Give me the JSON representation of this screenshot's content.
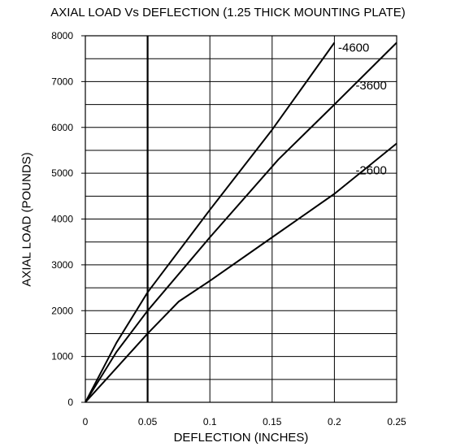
{
  "chart_data": {
    "type": "line",
    "title": "AXIAL LOAD Vs DEFLECTION (1.25 THICK MOUNTING PLATE)",
    "xlabel": "DEFLECTION (INCHES)",
    "ylabel": "AXIAL LOAD (POUNDS)",
    "xlim": [
      0,
      0.25
    ],
    "ylim": [
      0,
      8000
    ],
    "x_ticks": [
      "0",
      "0.05",
      "0.1",
      "0.15",
      "0.2",
      "0.25"
    ],
    "y_ticks": [
      "0",
      "1000",
      "2000",
      "3000",
      "4000",
      "5000",
      "6000",
      "7000",
      "8000"
    ],
    "grid": true,
    "series": [
      {
        "name": "-4600",
        "x": [
          0,
          0.025,
          0.05,
          0.1,
          0.15,
          0.2
        ],
        "y": [
          0,
          1300,
          2400,
          4200,
          5950,
          7850
        ],
        "label_at": [
          0.203,
          7650
        ]
      },
      {
        "name": "-3600",
        "x": [
          0,
          0.025,
          0.05,
          0.1,
          0.155,
          0.2,
          0.25
        ],
        "y": [
          0,
          1100,
          2000,
          3600,
          5300,
          6500,
          7850
        ],
        "label_at": [
          0.217,
          6830
        ]
      },
      {
        "name": "-2600",
        "x": [
          0,
          0.05,
          0.075,
          0.1,
          0.15,
          0.2,
          0.25
        ],
        "y": [
          0,
          1500,
          2200,
          2650,
          3600,
          4550,
          5650
        ],
        "label_at": [
          0.217,
          4980
        ]
      }
    ]
  }
}
